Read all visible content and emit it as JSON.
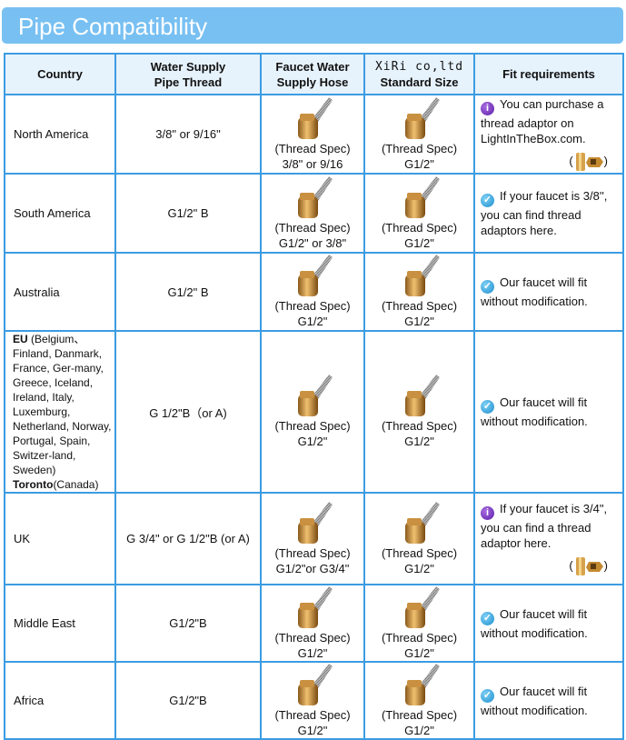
{
  "title": "Pipe Compatibility",
  "headers": {
    "country": "Country",
    "pipe_thread_1": "Water Supply",
    "pipe_thread_2": "Pipe Thread",
    "hose_1": "Faucet Water",
    "hose_2": "Supply Hose",
    "xiri_1": "XiRi  co,ltd",
    "xiri_2": "Standard Size",
    "fit": "Fit requirements"
  },
  "thread_spec_label": "(Thread Spec)",
  "colors": {
    "title_bar": "#78c0f2",
    "border": "#3c9ce2",
    "header_bg": "#e6f2fc",
    "info_icon": "#6a2cb8",
    "check_icon": "#1d8fcf"
  },
  "rows": [
    {
      "country": "North America",
      "pipe": "3/8\" or 9/16\"",
      "hose_spec": "3/8\" or 9/16",
      "xiri_spec": "G1/2\"",
      "fit_icon": "info-icon",
      "fit": "You can purchase a thread adaptor on LightInTheBox.com.",
      "adaptor": {
        "open": "(",
        "close": ")"
      }
    },
    {
      "country": "South America",
      "pipe": "G1/2\" B",
      "hose_spec": "G1/2\" or 3/8\"",
      "xiri_spec": "G1/2\"",
      "fit_icon": "check-icon",
      "fit": "If your faucet is 3/8'', you can find thread adaptors here."
    },
    {
      "country": "Australia",
      "pipe": "G1/2\" B",
      "hose_spec": "G1/2\"",
      "xiri_spec": "G1/2\"",
      "fit_icon": "check-icon",
      "fit": "Our faucet will fit without modification."
    },
    {
      "country_bold": "EU",
      "country": "(Belgium、Finland, Danmark, France, Ger-many, Greece, Iceland, Ireland, Italy, Luxemburg, Netherland, Norway, Portugal, Spain, Switzer-land, Sweden)",
      "country2_bold": "Toronto",
      "country2": "(Canada)",
      "pipe": "G 1/2\"B（or A)",
      "hose_spec": "G1/2\"",
      "xiri_spec": "G1/2\"",
      "fit_icon": "check-icon",
      "fit": "Our faucet will fit without modification."
    },
    {
      "country": "UK",
      "pipe": "G 3/4\" or G 1/2\"B (or A)",
      "hose_spec": "G1/2\"or G3/4\"",
      "xiri_spec": "G1/2\"",
      "fit_icon": "info-icon",
      "fit": "If your faucet is 3/4\", you can find a thread adaptor here.",
      "adaptor": {
        "open": "(",
        "close": ")"
      }
    },
    {
      "country": "Middle East",
      "pipe": "G1/2\"B",
      "hose_spec": "G1/2\"",
      "xiri_spec": "G1/2\"",
      "fit_icon": "check-icon",
      "fit": "Our faucet will fit without modification."
    },
    {
      "country": "Africa",
      "pipe": "G1/2\"B",
      "hose_spec": "G1/2\"",
      "xiri_spec": "G1/2\"",
      "fit_icon": "check-icon",
      "fit": "Our faucet will fit without modification."
    }
  ]
}
